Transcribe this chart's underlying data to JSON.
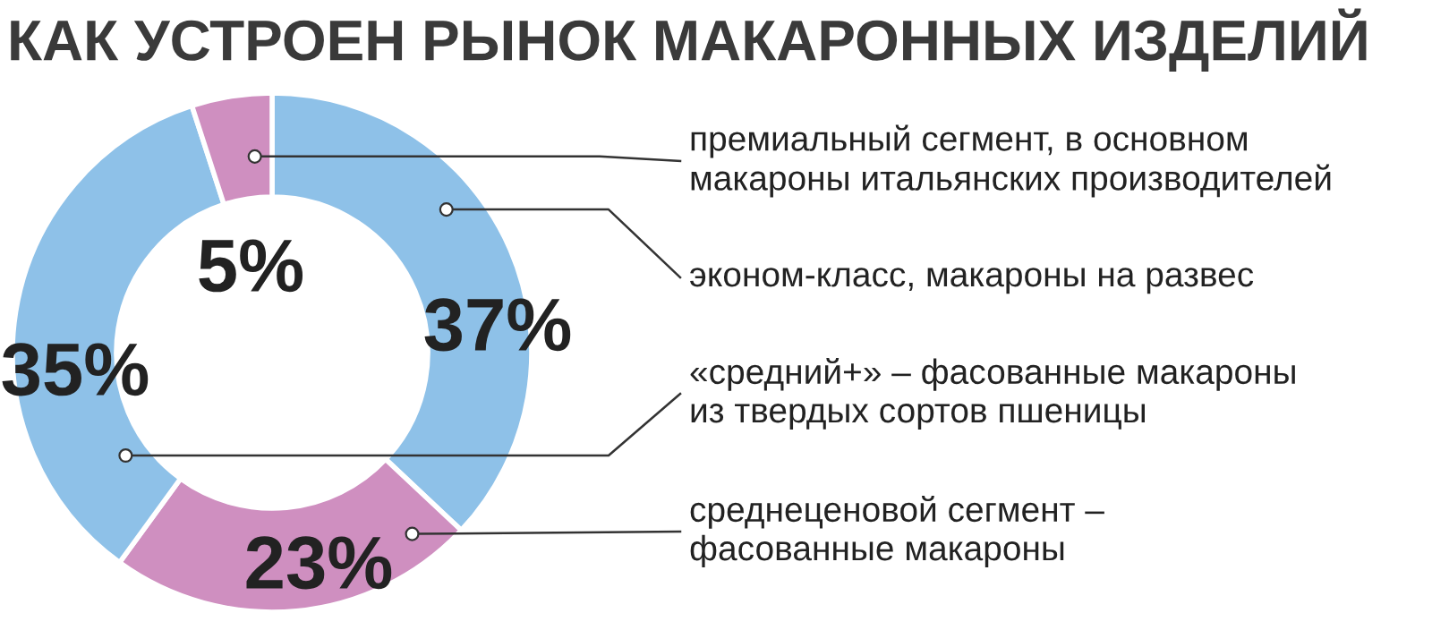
{
  "chart_data": {
    "type": "donut",
    "title": "КАК УСТРОЕН РЫНОК МАКАРОННЫХ ИЗДЕЛИЙ",
    "categories": [
      "эконом-класс, макароны на развес",
      "среднеценовой сегмент –\nфасованные макароны",
      "«средний+» – фасованные макароны\nиз твердых сортов пшеницы",
      "премиальный сегмент, в основном\nмакароны итальянских производителей"
    ],
    "values": [
      37,
      23,
      35,
      5
    ],
    "colors": [
      "#8ec1e8",
      "#cf8fc0",
      "#8ec1e8",
      "#cf8fc0"
    ],
    "value_labels": [
      "37%",
      "23%",
      "35%",
      "5%"
    ],
    "legend": false
  }
}
